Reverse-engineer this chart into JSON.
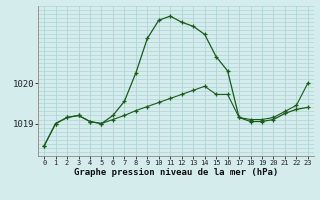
{
  "title": "Graphe pression niveau de la mer (hPa)",
  "background_color": "#d4ecec",
  "grid_color": "#b0d4d4",
  "line_color": "#1a5c1a",
  "ylim": [
    1018.2,
    1021.9
  ],
  "yticks": [
    1019,
    1020
  ],
  "xlim": [
    -0.5,
    23.5
  ],
  "series1_x": [
    0,
    1,
    2,
    3,
    4,
    5,
    6,
    7,
    8,
    9,
    10,
    11,
    12,
    13,
    14,
    15,
    16,
    17,
    18,
    19,
    20,
    21,
    22,
    23
  ],
  "series1_y": [
    1018.45,
    1019.0,
    1019.15,
    1019.2,
    1019.05,
    1019.0,
    1019.2,
    1019.55,
    1020.25,
    1021.1,
    1021.55,
    1021.65,
    1021.5,
    1021.4,
    1021.2,
    1020.65,
    1020.3,
    1019.15,
    1019.05,
    1019.05,
    1019.1,
    1019.25,
    1019.35,
    1019.4
  ],
  "series2_x": [
    0,
    1,
    2,
    3,
    4,
    5,
    6,
    7,
    8,
    9,
    10,
    11,
    12,
    13,
    14,
    15,
    16,
    17,
    18,
    19,
    20,
    21,
    22,
    23
  ],
  "series2_y": [
    1018.45,
    1019.0,
    1019.15,
    1019.2,
    1019.05,
    1019.0,
    1019.1,
    1019.2,
    1019.32,
    1019.42,
    1019.52,
    1019.62,
    1019.72,
    1019.82,
    1019.92,
    1019.72,
    1019.72,
    1019.15,
    1019.1,
    1019.1,
    1019.15,
    1019.3,
    1019.45,
    1020.0
  ],
  "x_labels": [
    "0",
    "1",
    "2",
    "3",
    "4",
    "5",
    "6",
    "7",
    "8",
    "9",
    "10",
    "11",
    "12",
    "13",
    "14",
    "15",
    "16",
    "17",
    "18",
    "19",
    "20",
    "21",
    "22",
    "23"
  ]
}
